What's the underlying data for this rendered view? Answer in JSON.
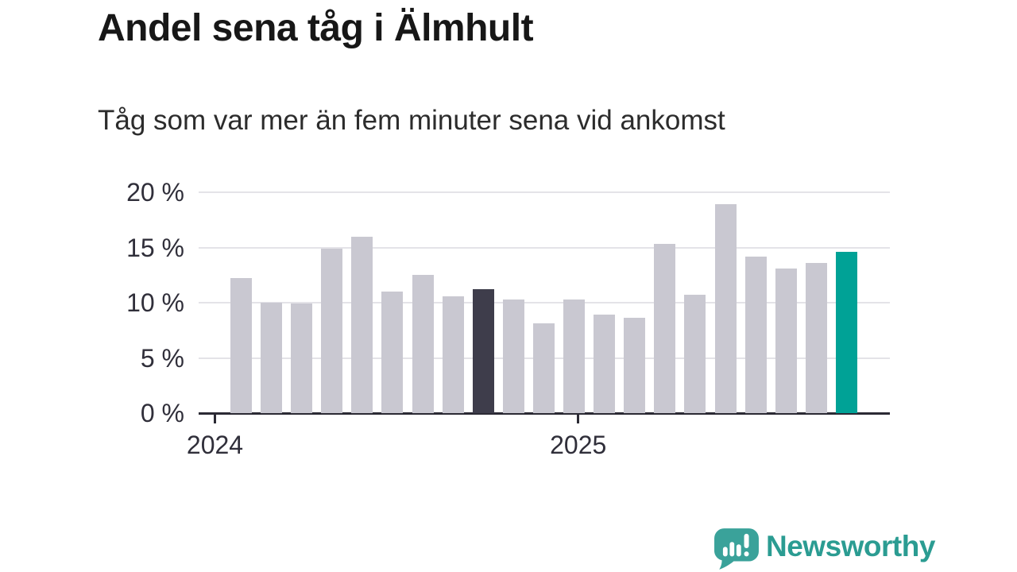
{
  "header": {
    "title": "Andel sena tåg i Älmhult",
    "subtitle": "Tåg som var mer än fem minuter sena vid ankomst"
  },
  "chart_data": {
    "type": "bar",
    "title": "Andel sena tåg i Älmhult",
    "subtitle": "Tåg som var mer än fem minuter sena vid ankomst",
    "unit": "%",
    "categories": [
      "jan 2024",
      "feb 2024",
      "mar 2024",
      "apr 2024",
      "maj 2024",
      "jun 2024",
      "jul 2024",
      "aug 2024",
      "sep 2024",
      "okt 2024",
      "nov 2024",
      "dec 2024",
      "jan 2025",
      "feb 2025",
      "mar 2025",
      "apr 2025",
      "maj 2025",
      "jun 2025",
      "jul 2025",
      "aug 2025",
      "sep 2025"
    ],
    "values": [
      12.2,
      10.0,
      9.9,
      14.9,
      16.0,
      11.0,
      12.5,
      10.6,
      11.2,
      10.3,
      8.1,
      10.3,
      8.9,
      8.6,
      15.3,
      10.7,
      18.9,
      14.2,
      13.1,
      13.6,
      14.6
    ],
    "highlight": {
      "dark_index": 8,
      "teal_index": 20
    },
    "y_ticks": [
      0,
      5,
      10,
      15,
      20
    ],
    "y_tick_labels": [
      "0 %",
      "5 %",
      "10 %",
      "15 %",
      "20 %"
    ],
    "x_ticks": [
      {
        "label": "2024",
        "month_index": 0
      },
      {
        "label": "2025",
        "month_index": 12
      }
    ],
    "ylim": [
      0,
      20
    ],
    "grid": "horizontal",
    "legend": "none"
  },
  "footer": {
    "brand": "Newsworthy"
  },
  "colors": {
    "bar_default": "#c9c8d1",
    "bar_dark": "#3e3d4b",
    "bar_teal": "#00a296",
    "gridline": "#e4e3e8",
    "axis": "#2b2a34",
    "logo_icon": "#3aa29a",
    "logo_text": "#2b9c92"
  }
}
